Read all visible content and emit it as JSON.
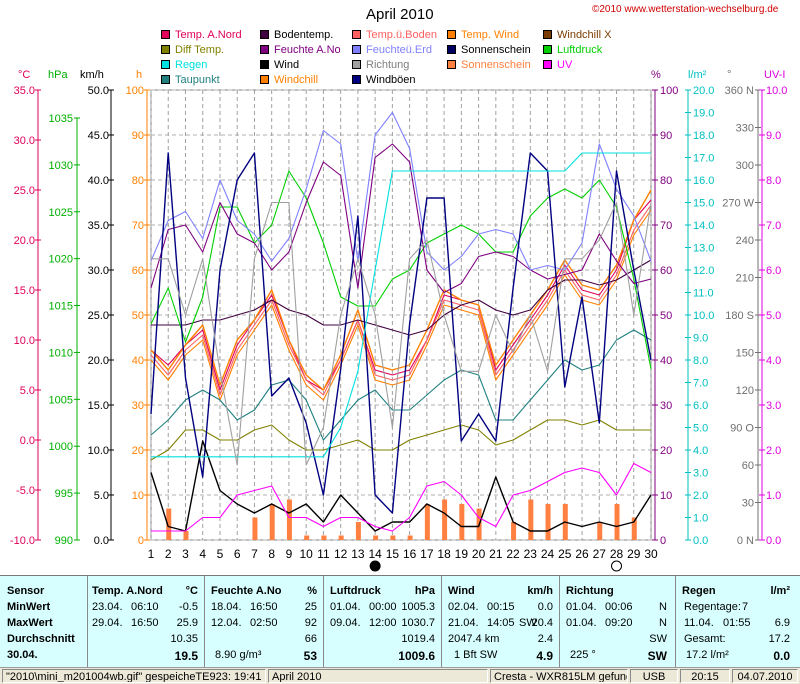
{
  "header": {
    "title": "April 2010",
    "copyright": "©2010 www.wetterstation-wechselburg.de"
  },
  "legend": [
    {
      "label": "Temp. A.Nord",
      "color": "#e0005a"
    },
    {
      "label": "Bodentemp.",
      "color": "#400040"
    },
    {
      "label": "Temp.ü.Boden",
      "color": "#ff6060"
    },
    {
      "label": "Temp. Wind",
      "color": "#ff8000"
    },
    {
      "label": "Windchill X",
      "color": "#7a3c00"
    },
    {
      "label": "Diff Temp.",
      "color": "#808000"
    },
    {
      "label": "Feuchte A.No",
      "color": "#800080"
    },
    {
      "label": "Feuchteü.Erd",
      "color": "#8080ff"
    },
    {
      "label": "Sonnenschein",
      "color": "#000060"
    },
    {
      "label": "Luftdruck",
      "color": "#00d000"
    },
    {
      "label": "Regen",
      "color": "#00e0e0"
    },
    {
      "label": "Wind",
      "color": "#000000"
    },
    {
      "label": "Richtung",
      "color": "#a0a0a0"
    },
    {
      "label": "Sonnenschein",
      "color": "#ff8040"
    },
    {
      "label": "UV",
      "color": "#ff00ff"
    },
    {
      "label": "Taupunkt",
      "color": "#208080"
    },
    {
      "label": "Windchill",
      "color": "#ff8000"
    },
    {
      "label": "Windböen",
      "color": "#000080"
    }
  ],
  "axes": {
    "units": [
      "°C",
      "hPa",
      "km/h",
      "h",
      "%",
      "l/m²",
      "°",
      "UV-I"
    ],
    "temp_ticks": [
      "35.0",
      "30.0",
      "25.0",
      "20.0",
      "15.0",
      "10.0",
      "5.0",
      "0.0",
      "-5.0",
      "-10.0"
    ],
    "hpa_ticks": [
      "1035",
      "1030",
      "1025",
      "1020",
      "1015",
      "1010",
      "1005",
      "1000",
      "995",
      "990"
    ],
    "kmh_ticks": [
      "50.0",
      "45.0",
      "40.0",
      "35.0",
      "30.0",
      "25.0",
      "20.0",
      "15.0",
      "10.0",
      "5.0",
      "0.0"
    ],
    "h_ticks": [
      "100",
      "90",
      "80",
      "70",
      "60",
      "50",
      "40",
      "30",
      "20",
      "10",
      "0"
    ],
    "pct_ticks": [
      "100",
      "90",
      "80",
      "70",
      "60",
      "50",
      "40",
      "30",
      "20",
      "10",
      "0"
    ],
    "rain_ticks": [
      "20.0",
      "19.0",
      "18.0",
      "17.0",
      "16.0",
      "15.0",
      "14.0",
      "13.0",
      "12.0",
      "11.0",
      "10.0",
      "9.0",
      "8.0",
      "7.0",
      "6.0",
      "5.0",
      "4.0",
      "3.0",
      "2.0",
      "1.0",
      "0.0"
    ],
    "deg_ticks": [
      "360 N",
      "330",
      "300",
      "270 W",
      "240",
      "210",
      "180 S",
      "150",
      "120",
      "90 O",
      "60",
      "30",
      "0 N"
    ],
    "uv_ticks": [
      "10.0",
      "9.0",
      "8.0",
      "7.0",
      "6.0",
      "5.0",
      "4.0",
      "3.0",
      "2.0",
      "1.0",
      "0.0"
    ]
  },
  "chart_data": {
    "type": "line",
    "title": "April 2010",
    "x": [
      1,
      2,
      3,
      4,
      5,
      6,
      7,
      8,
      9,
      10,
      11,
      12,
      13,
      14,
      15,
      16,
      17,
      18,
      19,
      20,
      21,
      22,
      23,
      24,
      25,
      26,
      27,
      28,
      29,
      30
    ],
    "xlabel": "",
    "temp_ylim": [
      -10,
      35
    ],
    "series": [
      {
        "name": "Temp. A.Nord",
        "axis": "temp",
        "color": "#e0005a",
        "values": [
          9,
          7.5,
          9.5,
          11,
          5,
          9.5,
          12,
          14.5,
          10,
          6,
          5,
          8,
          12,
          7,
          6.5,
          7,
          10,
          14.5,
          14,
          13.5,
          7,
          9.5,
          12,
          14.5,
          17.5,
          15,
          14.5,
          17,
          22,
          24
        ]
      },
      {
        "name": "Temp. Wind",
        "axis": "temp",
        "color": "#ff8000",
        "values": [
          9,
          7,
          9.5,
          11.5,
          5.5,
          10,
          12,
          15,
          10,
          6.5,
          5,
          8.5,
          13,
          7.5,
          7,
          7.5,
          11,
          15,
          14,
          13.5,
          7.5,
          10,
          12.5,
          15,
          18,
          15.5,
          15,
          17.5,
          22,
          25
        ]
      },
      {
        "name": "Temp.ü.Boden",
        "axis": "temp",
        "color": "#ff6060",
        "values": [
          8.5,
          6.5,
          9,
          10.5,
          4.5,
          9,
          11.5,
          14,
          9.5,
          6,
          4.5,
          8,
          12,
          6.5,
          6,
          6.5,
          10,
          14,
          13.5,
          13,
          6.5,
          9,
          11.5,
          14,
          17,
          14.5,
          14,
          16.5,
          21,
          23.5
        ]
      },
      {
        "name": "Windchill",
        "axis": "temp",
        "color": "#ff8000",
        "values": [
          8,
          6,
          8.5,
          10,
          4,
          8.5,
          11,
          13.5,
          9,
          5.5,
          4,
          7.5,
          11.5,
          6,
          5.5,
          6,
          9.5,
          13.5,
          13,
          12.5,
          6,
          8.5,
          11,
          13.5,
          16.5,
          14,
          13.5,
          16,
          20.5,
          23
        ]
      },
      {
        "name": "Bodentemp.",
        "axis": "temp",
        "color": "#400040",
        "values": [
          11.5,
          11.5,
          11.5,
          12,
          12,
          12.5,
          13,
          14,
          13,
          12.5,
          11.5,
          11.5,
          12,
          11.5,
          11,
          10.5,
          11,
          12.5,
          13.5,
          14,
          13,
          12.5,
          13,
          15,
          16,
          16,
          15.5,
          16,
          17,
          18
        ]
      },
      {
        "name": "Diff Temp.",
        "axis": "temp",
        "color": "#808000",
        "values": [
          -2,
          -1,
          1,
          1,
          0,
          0,
          1,
          1.5,
          0,
          -1,
          -1,
          -0.5,
          0,
          -1,
          -1,
          0,
          0.5,
          1,
          1.5,
          1,
          -0.5,
          0,
          1,
          2,
          2,
          1.5,
          2,
          1,
          1,
          1
        ]
      },
      {
        "name": "Taupunkt",
        "axis": "temp",
        "color": "#208080",
        "values": [
          0.5,
          2,
          4,
          5,
          4,
          2,
          3,
          5.5,
          6,
          4,
          0,
          2,
          4,
          5,
          3,
          3,
          4.5,
          6,
          7,
          6.5,
          2,
          2,
          4,
          6,
          8,
          7,
          7.5,
          10,
          11,
          10
        ]
      },
      {
        "name": "Luftdruck",
        "axis": "hpa",
        "color": "#00d000",
        "values": [
          1014,
          1018,
          1012,
          1017,
          1027,
          1027,
          1023,
          1025,
          1031,
          1028,
          1023,
          1017,
          1016,
          1016,
          1019,
          1020,
          1023,
          1024,
          1025,
          1024,
          1022,
          1022,
          1026,
          1028,
          1029,
          1028,
          1030,
          1027,
          1019,
          1009
        ]
      },
      {
        "name": "Feuchte A.No",
        "axis": "pct",
        "color": "#800080",
        "values": [
          56,
          69,
          70,
          64,
          75,
          68,
          66,
          60,
          64,
          75,
          84,
          81,
          56,
          85,
          88,
          84,
          60,
          55,
          57,
          63,
          64,
          63,
          60,
          58,
          59,
          60,
          68,
          62,
          57,
          58
        ]
      },
      {
        "name": "Feuchteü.Erd",
        "axis": "pct",
        "color": "#8080ff",
        "values": [
          62,
          71,
          73,
          67,
          80,
          71,
          68,
          62,
          67,
          78,
          91,
          88,
          62,
          90,
          95,
          87,
          64,
          60,
          63,
          68,
          69,
          68,
          60,
          61,
          60,
          66,
          88,
          78,
          72,
          62
        ]
      },
      {
        "name": "Windböen",
        "axis": "kmh",
        "color": "#000080",
        "values": [
          14,
          43,
          18,
          7,
          30,
          40,
          43,
          16,
          18,
          13,
          5,
          19,
          36,
          5,
          3,
          24,
          38,
          38,
          11,
          14,
          11,
          28,
          43,
          41,
          17,
          27,
          13,
          41,
          30,
          20
        ]
      },
      {
        "name": "Wind",
        "axis": "kmh",
        "color": "#000000",
        "values": [
          7.5,
          1.5,
          1,
          11,
          5.5,
          4,
          3,
          4,
          3,
          4,
          2,
          5,
          3,
          1,
          2,
          2,
          4,
          3,
          1.5,
          1.5,
          7,
          2,
          1,
          1,
          2,
          1.5,
          2,
          1.5,
          2,
          5
        ]
      },
      {
        "name": "Regen",
        "axis": "rain",
        "color": "#00e0e0",
        "values": [
          3.7,
          3.7,
          3.7,
          3.7,
          3.7,
          3.7,
          3.7,
          3.7,
          3.7,
          3.7,
          3.7,
          5,
          7.5,
          12,
          16.4,
          16.4,
          16.4,
          16.4,
          16.4,
          16.4,
          16.4,
          16.4,
          16.4,
          16.4,
          16.4,
          17.2,
          17.2,
          17.2,
          17.2,
          17.2
        ]
      },
      {
        "name": "Richtung",
        "axis": "deg",
        "color": "#a0a0a0",
        "values": [
          225,
          225,
          180,
          225,
          135,
          60,
          225,
          270,
          270,
          60,
          90,
          180,
          225,
          180,
          90,
          225,
          240,
          180,
          135,
          135,
          180,
          150,
          180,
          135,
          225,
          225,
          240,
          270,
          180,
          270
        ]
      },
      {
        "name": "UV",
        "axis": "uv",
        "color": "#ff00ff",
        "values": [
          0.2,
          0.2,
          0.2,
          0.5,
          0.5,
          1,
          1.1,
          1.2,
          0.5,
          0.5,
          0.3,
          0.5,
          0.5,
          0.3,
          0.2,
          0.5,
          1.2,
          1.3,
          1,
          0.5,
          0.3,
          1,
          1.1,
          1.3,
          1.5,
          1.6,
          1.5,
          1,
          1.7,
          1.5
        ]
      },
      {
        "name": "Sonnenschein",
        "axis": "h",
        "color": "#ff8040",
        "type": "bar",
        "values": [
          0,
          7,
          2,
          0,
          0,
          0,
          5,
          8,
          9,
          1,
          1,
          1,
          4,
          1,
          1,
          1,
          8,
          9,
          8,
          7,
          0,
          4,
          9,
          8,
          8,
          0,
          4,
          8,
          5,
          0
        ]
      }
    ],
    "moon": [
      {
        "day": 14,
        "phase": "full"
      },
      {
        "day": 28,
        "phase": "new"
      }
    ],
    "grid": true,
    "legend_position": "top"
  },
  "stats": {
    "sensor": {
      "header": "Sensor",
      "min": "MinWert",
      "max": "MaxWert",
      "avg": "Durchschnitt",
      "date": "30.04."
    },
    "temp": {
      "header": "Temp. A.Nord",
      "unit": "°C",
      "min_date": "23.04.",
      "min_time": "06:10",
      "min_val": "-0.5",
      "max_date": "29.04.",
      "max_time": "16:50",
      "max_val": "25.9",
      "avg_val": "10.35",
      "cur_val": "19.5"
    },
    "hum": {
      "header": "Feuchte A.No",
      "unit": "%",
      "min_date": "18.04.",
      "min_time": "16:50",
      "min_val": "25",
      "max_date": "12.04.",
      "max_time": "02:50",
      "max_val": "92",
      "avg_val": "66",
      "abs": "8.90 g/m³",
      "cur_val": "53"
    },
    "press": {
      "header": "Luftdruck",
      "unit": "hPa",
      "min_date": "01.04.",
      "min_time": "00:00",
      "min_val": "1005.3",
      "max_date": "09.04.",
      "max_time": "12:00",
      "max_val": "1030.7",
      "avg_val": "1019.4",
      "cur_val": "1009.6"
    },
    "wind": {
      "header": "Wind",
      "unit": "km/h",
      "min_date": "02.04.",
      "min_time": "00:15",
      "min_val": "0.0",
      "max_date": "21.04.",
      "max_time": "14:05",
      "max_dir": "SW",
      "max_val": "20.4",
      "dist": "2047.4 km",
      "avg_val": "2.4",
      "bft": "1 Bft SW",
      "cur_val": "4.9"
    },
    "dir": {
      "header": "Richtung",
      "min_date": "01.04.",
      "min_time": "00:06",
      "min_val": "N",
      "max_date": "01.04.",
      "max_time": "09:20",
      "max_val": "N",
      "avg_val": "SW",
      "cur_deg": "225 °",
      "cur_val": "SW"
    },
    "rain": {
      "header": "Regen",
      "unit": "l/m²",
      "days_label": "Regentage:",
      "days": "7",
      "max_date": "11.04.",
      "max_time": "01:55",
      "max_val": "6.9",
      "total_label": "Gesamt:",
      "total": "17.2",
      "cur_sum": "17.2 l/m²",
      "cur_val": "0.0"
    }
  },
  "status": {
    "file": "\"2010\\mini_m201004wb.gif\"  gespeicheTE923: 19:41",
    "month": "April 2010",
    "station": "Cresta - WXR815LM gefunden",
    "port": "USB",
    "time": "20:15",
    "date": "04.07.2010"
  }
}
